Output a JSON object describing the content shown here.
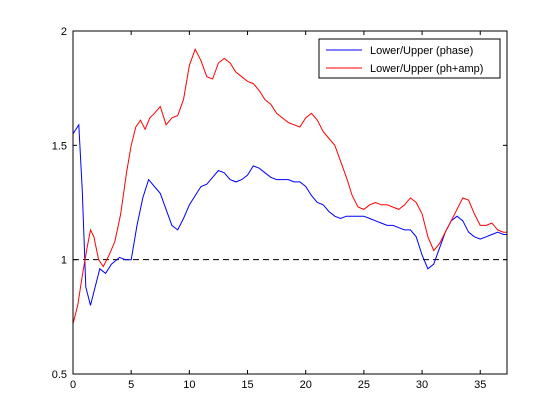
{
  "chart_data": {
    "type": "line",
    "xlim": [
      0,
      37.3
    ],
    "ylim": [
      0.5,
      2
    ],
    "x_ticks": [
      "0",
      "5",
      "10",
      "15",
      "20",
      "25",
      "30",
      "35"
    ],
    "y_ticks": [
      "0.5",
      "1",
      "1.5",
      "2"
    ],
    "reference_line": {
      "y": 1,
      "style": "dashed",
      "color": "#000000"
    },
    "legend_position": "top-right",
    "grid": false,
    "series": [
      {
        "name": "Lower/Upper (phase)",
        "color": "#0000ff",
        "x": [
          0,
          0.5,
          0.8,
          1.1,
          1.5,
          1.9,
          2.3,
          2.8,
          3.3,
          4.0,
          4.5,
          5.0,
          5.5,
          6.0,
          6.5,
          7.0,
          7.5,
          8.0,
          8.5,
          9.0,
          9.5,
          10.0,
          10.5,
          11.0,
          11.5,
          12.0,
          12.5,
          13.0,
          13.5,
          14.0,
          14.5,
          15.0,
          15.5,
          16.0,
          16.5,
          17.0,
          17.5,
          18.0,
          18.5,
          19.0,
          19.5,
          20.0,
          20.5,
          21.0,
          21.5,
          22.0,
          22.5,
          23.0,
          23.5,
          24.0,
          24.5,
          25.0,
          25.5,
          26.0,
          26.5,
          27.0,
          27.5,
          28.0,
          28.5,
          29.0,
          29.5,
          30.0,
          30.5,
          31.0,
          31.5,
          32.0,
          32.5,
          33.0,
          33.5,
          34.0,
          34.5,
          35.0,
          35.5,
          36.0,
          36.5,
          37.0,
          37.3
        ],
        "y": [
          1.55,
          1.59,
          1.3,
          0.88,
          0.8,
          0.88,
          0.96,
          0.94,
          0.98,
          1.01,
          1.0,
          1.0,
          1.15,
          1.27,
          1.35,
          1.32,
          1.29,
          1.22,
          1.15,
          1.13,
          1.18,
          1.24,
          1.28,
          1.32,
          1.33,
          1.36,
          1.39,
          1.38,
          1.35,
          1.34,
          1.35,
          1.37,
          1.41,
          1.4,
          1.38,
          1.36,
          1.35,
          1.35,
          1.35,
          1.34,
          1.34,
          1.32,
          1.28,
          1.25,
          1.24,
          1.21,
          1.19,
          1.18,
          1.19,
          1.19,
          1.19,
          1.19,
          1.18,
          1.17,
          1.16,
          1.15,
          1.15,
          1.14,
          1.13,
          1.13,
          1.1,
          1.02,
          0.96,
          0.98,
          1.05,
          1.12,
          1.17,
          1.19,
          1.17,
          1.12,
          1.1,
          1.09,
          1.1,
          1.11,
          1.12,
          1.11,
          1.11
        ]
      },
      {
        "name": "Lower/Upper (ph+amp)",
        "color": "#ff0000",
        "x": [
          0,
          0.4,
          0.8,
          1.2,
          1.5,
          1.8,
          2.2,
          2.6,
          3.1,
          3.6,
          4.1,
          4.6,
          5.0,
          5.4,
          5.8,
          6.2,
          6.6,
          7.0,
          7.5,
          8.0,
          8.5,
          9.0,
          9.5,
          10.0,
          10.5,
          11.0,
          11.5,
          12.0,
          12.5,
          13.0,
          13.5,
          14.0,
          14.5,
          15.0,
          15.5,
          16.0,
          16.5,
          17.0,
          17.5,
          18.0,
          18.5,
          19.0,
          19.5,
          20.0,
          20.5,
          21.0,
          21.5,
          22.0,
          22.5,
          23.0,
          23.5,
          24.0,
          24.5,
          25.0,
          25.5,
          26.0,
          26.5,
          27.0,
          27.5,
          28.0,
          28.5,
          29.0,
          29.5,
          30.0,
          30.5,
          31.0,
          31.5,
          32.0,
          32.5,
          33.0,
          33.5,
          34.0,
          34.5,
          35.0,
          35.5,
          36.0,
          36.5,
          37.0,
          37.3
        ],
        "y": [
          0.72,
          0.8,
          0.93,
          1.05,
          1.13,
          1.1,
          1.0,
          0.97,
          1.02,
          1.08,
          1.2,
          1.38,
          1.5,
          1.58,
          1.61,
          1.57,
          1.62,
          1.64,
          1.67,
          1.59,
          1.62,
          1.63,
          1.7,
          1.85,
          1.92,
          1.87,
          1.8,
          1.79,
          1.86,
          1.88,
          1.86,
          1.82,
          1.8,
          1.78,
          1.77,
          1.74,
          1.7,
          1.68,
          1.64,
          1.62,
          1.6,
          1.59,
          1.58,
          1.62,
          1.64,
          1.61,
          1.56,
          1.53,
          1.5,
          1.43,
          1.36,
          1.28,
          1.23,
          1.22,
          1.24,
          1.25,
          1.24,
          1.24,
          1.23,
          1.22,
          1.24,
          1.27,
          1.25,
          1.2,
          1.1,
          1.04,
          1.07,
          1.12,
          1.17,
          1.22,
          1.27,
          1.26,
          1.2,
          1.15,
          1.15,
          1.16,
          1.13,
          1.12,
          1.12
        ]
      }
    ]
  }
}
